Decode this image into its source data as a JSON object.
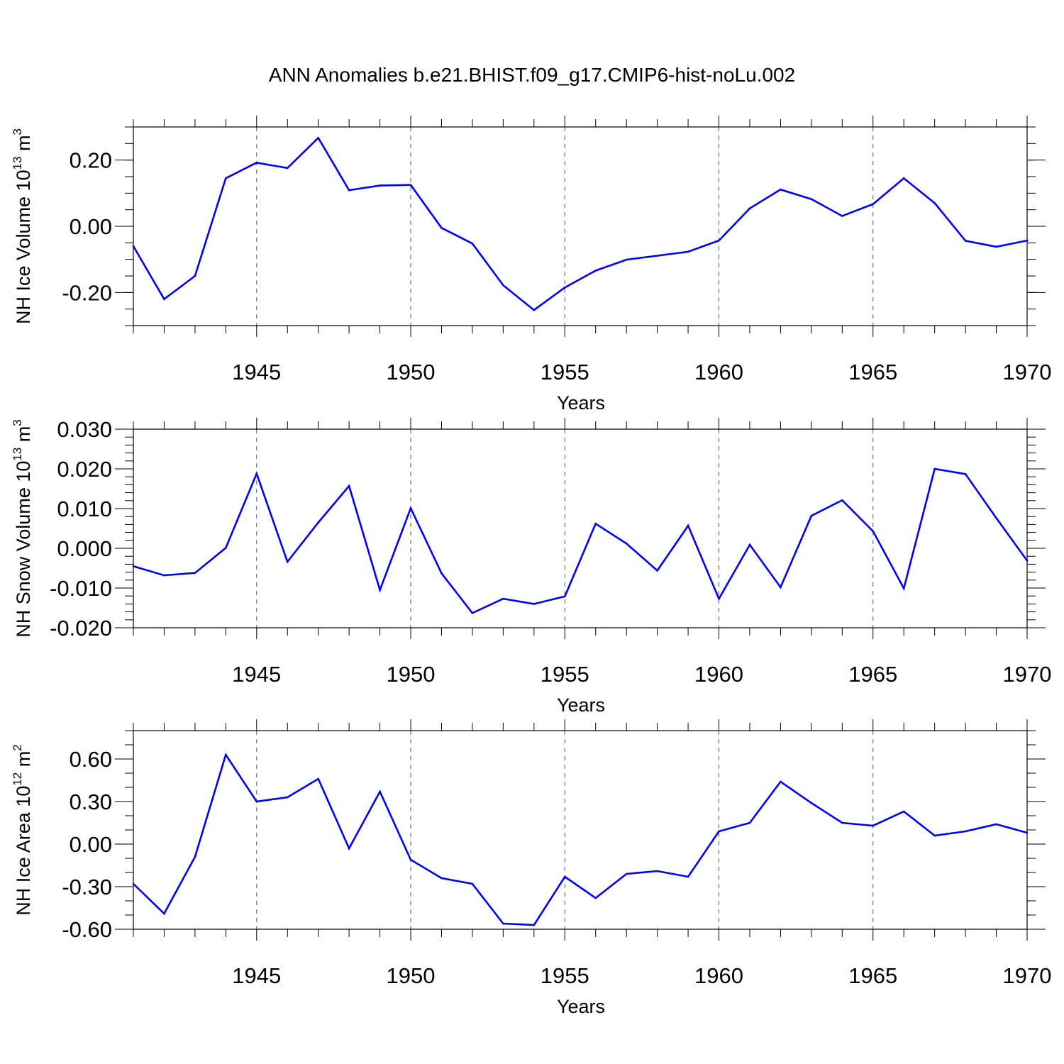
{
  "title": "ANN Anomalies b.e21.BHIST.f09_g17.CMIP6-hist-noLu.002",
  "chart_data": [
    {
      "type": "line",
      "xlabel": "Years",
      "ylabel_main": "NH Ice Volume 10",
      "ylabel_sup": "13",
      "ylabel_unit": " m",
      "ylabel_unit_sup": "3",
      "xlim": [
        1941,
        1970
      ],
      "ylim": [
        -0.3,
        0.3
      ],
      "yticks": [
        -0.2,
        0.0,
        0.2
      ],
      "ytick_labels": [
        "-0.20",
        "0.00",
        "0.20"
      ],
      "yminor_step": 0.05,
      "xticks": [
        1945,
        1950,
        1955,
        1960,
        1965,
        1970
      ],
      "xtick_labels": [
        "1945",
        "1950",
        "1955",
        "1960",
        "1965",
        "1970"
      ],
      "color": "#0000ff",
      "x": [
        1941,
        1942,
        1943,
        1944,
        1945,
        1946,
        1947,
        1948,
        1949,
        1950,
        1951,
        1952,
        1953,
        1954,
        1955,
        1956,
        1957,
        1958,
        1959,
        1960,
        1961,
        1962,
        1963,
        1964,
        1965,
        1966,
        1967,
        1968,
        1969,
        1970
      ],
      "values": [
        -0.06,
        -0.22,
        -0.15,
        0.145,
        0.192,
        0.176,
        0.267,
        0.109,
        0.123,
        0.125,
        -0.005,
        -0.052,
        -0.178,
        -0.253,
        -0.185,
        -0.134,
        -0.101,
        -0.089,
        -0.077,
        -0.043,
        0.054,
        0.111,
        0.082,
        0.031,
        0.067,
        0.145,
        0.07,
        -0.044,
        -0.062,
        -0.043
      ]
    },
    {
      "type": "line",
      "xlabel": "Years",
      "ylabel_main": "NH Snow Volume 10",
      "ylabel_sup": "13",
      "ylabel_unit": " m",
      "ylabel_unit_sup": "3",
      "xlim": [
        1941,
        1970
      ],
      "ylim": [
        -0.02,
        0.03
      ],
      "yticks": [
        -0.02,
        -0.01,
        0.0,
        0.01,
        0.02,
        0.03
      ],
      "ytick_labels": [
        "-0.020",
        "-0.010",
        "0.000",
        "0.010",
        "0.020",
        "0.030"
      ],
      "yminor_step": 0.002,
      "xticks": [
        1945,
        1950,
        1955,
        1960,
        1965,
        1970
      ],
      "xtick_labels": [
        "1945",
        "1950",
        "1955",
        "1960",
        "1965",
        "1970"
      ],
      "color": "#0000ff",
      "x": [
        1941,
        1942,
        1943,
        1944,
        1945,
        1946,
        1947,
        1948,
        1949,
        1950,
        1951,
        1952,
        1953,
        1954,
        1955,
        1956,
        1957,
        1958,
        1959,
        1960,
        1961,
        1962,
        1963,
        1964,
        1965,
        1966,
        1967,
        1968,
        1969,
        1970
      ],
      "values": [
        -0.0045,
        -0.0068,
        -0.0062,
        0.0001,
        0.0188,
        -0.0034,
        0.0065,
        0.0157,
        -0.0105,
        0.0101,
        -0.0063,
        -0.0163,
        -0.0127,
        -0.014,
        -0.0121,
        0.0062,
        0.0012,
        -0.0056,
        0.0057,
        -0.0127,
        0.0009,
        -0.0098,
        0.0082,
        0.0121,
        0.0043,
        -0.0101,
        0.02,
        0.0187,
        0.0076,
        -0.0031
      ]
    },
    {
      "type": "line",
      "xlabel": "Years",
      "ylabel_main": "NH Ice Area 10",
      "ylabel_sup": "12",
      "ylabel_unit": " m",
      "ylabel_unit_sup": "2",
      "xlim": [
        1941,
        1970
      ],
      "ylim": [
        -0.6,
        0.8
      ],
      "yticks": [
        -0.6,
        -0.3,
        0.0,
        0.3,
        0.6
      ],
      "ytick_labels": [
        "-0.60",
        "-0.30",
        "0.00",
        "0.30",
        "0.60"
      ],
      "yminor_step": 0.1,
      "xticks": [
        1945,
        1950,
        1955,
        1960,
        1965,
        1970
      ],
      "xtick_labels": [
        "1945",
        "1950",
        "1955",
        "1960",
        "1965",
        "1970"
      ],
      "color": "#0000ff",
      "x": [
        1941,
        1942,
        1943,
        1944,
        1945,
        1946,
        1947,
        1948,
        1949,
        1950,
        1951,
        1952,
        1953,
        1954,
        1955,
        1956,
        1957,
        1958,
        1959,
        1960,
        1961,
        1962,
        1963,
        1964,
        1965,
        1966,
        1967,
        1968,
        1969,
        1970
      ],
      "values": [
        -0.28,
        -0.49,
        -0.09,
        0.63,
        0.3,
        0.33,
        0.46,
        -0.03,
        0.37,
        -0.11,
        -0.24,
        -0.28,
        -0.56,
        -0.57,
        -0.23,
        -0.38,
        -0.21,
        -0.19,
        -0.23,
        0.09,
        0.15,
        0.44,
        0.29,
        0.15,
        0.13,
        0.23,
        0.06,
        0.09,
        0.14,
        0.08
      ]
    }
  ]
}
